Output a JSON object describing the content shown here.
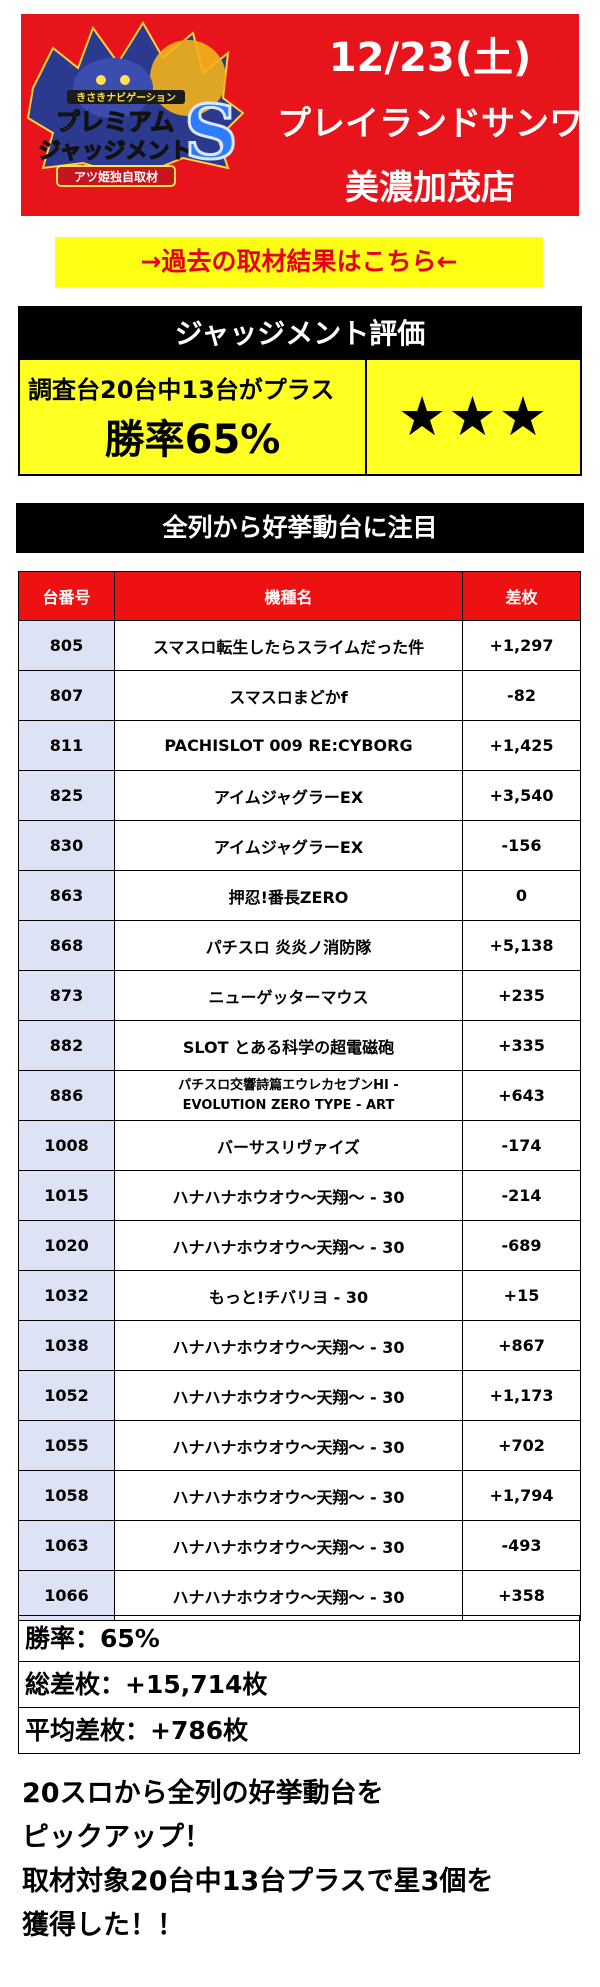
{
  "header": {
    "date": "12/23(土)",
    "store_line1": "プレイランドサンワ",
    "store_line2": "美濃加茂店",
    "logo": {
      "text_top": "きさきナビゲーション",
      "text_main1": "プレミアム",
      "text_main2": "ジャッジメント",
      "letter": "S",
      "text_badge": "アツ姫独自取材"
    }
  },
  "link_banner": "→過去の取材結果はこちら←",
  "judgment": {
    "title": "ジャッジメント評価",
    "survey": "調査台20台中13台がプラス",
    "win_rate": "勝率65%",
    "stars": "★★★"
  },
  "section_title": "全列から好挙動台に注目",
  "table": {
    "headers": [
      "台番号",
      "機種名",
      "差枚"
    ],
    "rows": [
      {
        "num": "805",
        "model": "スマスロ転生したらスライムだった件",
        "diff": "+1,297"
      },
      {
        "num": "807",
        "model": "スマスロまどかf",
        "diff": "-82"
      },
      {
        "num": "811",
        "model": "PACHISLOT 009 RE:CYBORG",
        "diff": "+1,425"
      },
      {
        "num": "825",
        "model": "アイムジャグラーEX",
        "diff": "+3,540"
      },
      {
        "num": "830",
        "model": "アイムジャグラーEX",
        "diff": "-156"
      },
      {
        "num": "863",
        "model": "押忍!番長ZERO",
        "diff": "0"
      },
      {
        "num": "868",
        "model": "パチスロ 炎炎ノ消防隊",
        "diff": "+5,138"
      },
      {
        "num": "873",
        "model": "ニューゲッターマウス",
        "diff": "+235"
      },
      {
        "num": "882",
        "model": "SLOT とある科学の超電磁砲",
        "diff": "+335"
      },
      {
        "num": "886",
        "model": "パチスロ交響詩篇エウレカセブンHI - EVOLUTION ZERO TYPE - ART",
        "model_line1": "パチスロ交響詩篇エウレカセブンHI -",
        "model_line2": "EVOLUTION ZERO TYPE - ART",
        "diff": "+643"
      },
      {
        "num": "1008",
        "model": "バーサスリヴァイズ",
        "diff": "-174"
      },
      {
        "num": "1015",
        "model": "ハナハナホウオウ～天翔～ - 30",
        "diff": "-214"
      },
      {
        "num": "1020",
        "model": "ハナハナホウオウ～天翔～ - 30",
        "diff": "-689"
      },
      {
        "num": "1032",
        "model": "もっと!チバリヨ - 30",
        "diff": "+15"
      },
      {
        "num": "1038",
        "model": "ハナハナホウオウ～天翔～ - 30",
        "diff": "+867"
      },
      {
        "num": "1052",
        "model": "ハナハナホウオウ～天翔～ - 30",
        "diff": "+1,173"
      },
      {
        "num": "1055",
        "model": "ハナハナホウオウ～天翔～ - 30",
        "diff": "+702"
      },
      {
        "num": "1058",
        "model": "ハナハナホウオウ～天翔～ - 30",
        "diff": "+1,794"
      },
      {
        "num": "1063",
        "model": "ハナハナホウオウ～天翔～ - 30",
        "diff": "-493"
      },
      {
        "num": "1066",
        "model": "ハナハナホウオウ～天翔～ - 30",
        "diff": "+358"
      }
    ]
  },
  "summary": {
    "win_rate": "勝率：65%",
    "total_diff": "総差枚：+15,714枚",
    "avg_diff": "平均差枚：+786枚"
  },
  "bottom_text": [
    "20スロから全列の好挙動台を",
    "ピックアップ！",
    "取材対象20台中13台プラスで星3個を",
    "獲得した！！"
  ],
  "colors": {
    "header_red": "#e8141c",
    "banner_yellow": "#ffff14",
    "link_red": "#e60012",
    "judge_yellow": "#ffff22",
    "table_head_red": "#ee1111",
    "num_cell_blue": "#dde3f4"
  }
}
